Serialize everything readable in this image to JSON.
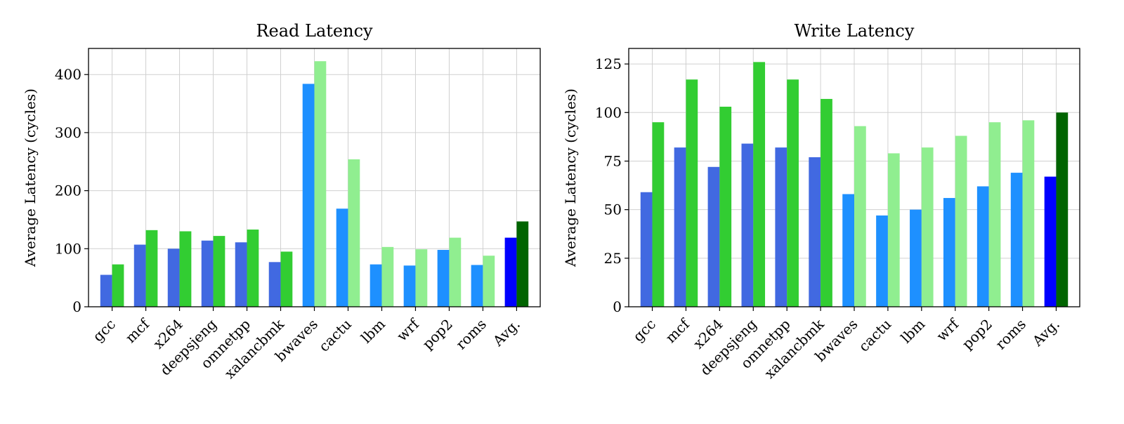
{
  "chart_data": [
    {
      "type": "bar",
      "title": "Read Latency",
      "xlabel": "",
      "ylabel": "Average Latency (cycles)",
      "ylim": [
        0,
        445
      ],
      "yticks": [
        0,
        100,
        200,
        300,
        400
      ],
      "grid": true,
      "categories": [
        "gcc",
        "mcf",
        "x264",
        "deepsjeng",
        "omnetpp",
        "xalancbmk",
        "bwaves",
        "cactu",
        "lbm",
        "wrf",
        "pop2",
        "roms",
        "Avg."
      ],
      "series": [
        {
          "values": [
            55,
            107,
            100,
            114,
            111,
            77,
            384,
            169,
            73,
            71,
            98,
            72,
            119
          ],
          "colors": [
            "#4169E1",
            "#4169E1",
            "#4169E1",
            "#4169E1",
            "#4169E1",
            "#4169E1",
            "#1E90FF",
            "#1E90FF",
            "#1E90FF",
            "#1E90FF",
            "#1E90FF",
            "#1E90FF",
            "#0000FF"
          ]
        },
        {
          "values": [
            73,
            132,
            130,
            122,
            133,
            95,
            423,
            254,
            103,
            99,
            119,
            88,
            147
          ],
          "colors": [
            "#32CD32",
            "#32CD32",
            "#32CD32",
            "#32CD32",
            "#32CD32",
            "#32CD32",
            "#90EE90",
            "#90EE90",
            "#90EE90",
            "#90EE90",
            "#90EE90",
            "#90EE90",
            "#006400"
          ]
        }
      ]
    },
    {
      "type": "bar",
      "title": "Write Latency",
      "xlabel": "",
      "ylabel": "Average Latency (cycles)",
      "ylim": [
        0,
        133
      ],
      "yticks": [
        0,
        25,
        50,
        75,
        100,
        125
      ],
      "grid": true,
      "categories": [
        "gcc",
        "mcf",
        "x264",
        "deepsjeng",
        "omnetpp",
        "xalancbmk",
        "bwaves",
        "cactu",
        "lbm",
        "wrf",
        "pop2",
        "roms",
        "Avg."
      ],
      "series": [
        {
          "values": [
            59,
            82,
            72,
            84,
            82,
            77,
            58,
            47,
            50,
            56,
            62,
            69,
            67
          ],
          "colors": [
            "#4169E1",
            "#4169E1",
            "#4169E1",
            "#4169E1",
            "#4169E1",
            "#4169E1",
            "#1E90FF",
            "#1E90FF",
            "#1E90FF",
            "#1E90FF",
            "#1E90FF",
            "#1E90FF",
            "#0000FF"
          ]
        },
        {
          "values": [
            95,
            117,
            103,
            126,
            117,
            107,
            93,
            79,
            82,
            88,
            95,
            96,
            100
          ],
          "colors": [
            "#32CD32",
            "#32CD32",
            "#32CD32",
            "#32CD32",
            "#32CD32",
            "#32CD32",
            "#90EE90",
            "#90EE90",
            "#90EE90",
            "#90EE90",
            "#90EE90",
            "#90EE90",
            "#006400"
          ]
        }
      ]
    }
  ]
}
